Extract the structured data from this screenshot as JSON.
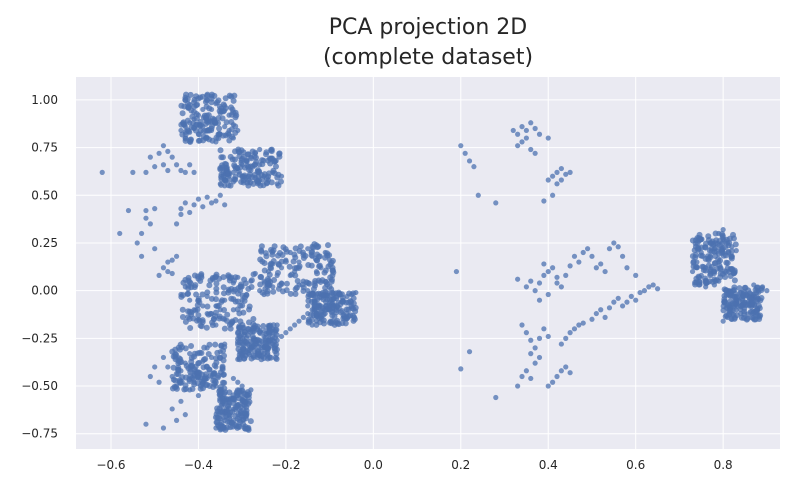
{
  "chart_data": {
    "type": "scatter",
    "title_lines": [
      "PCA projection 2D",
      "(complete dataset)"
    ],
    "xlabel": "",
    "ylabel": "",
    "xlim": [
      -0.68,
      0.93
    ],
    "ylim": [
      -0.83,
      1.12
    ],
    "x_ticks": [
      -0.6,
      -0.4,
      -0.2,
      0.0,
      0.2,
      0.4,
      0.6,
      0.8
    ],
    "x_tick_labels": [
      "−0.6",
      "−0.4",
      "−0.2",
      "0.0",
      "0.2",
      "0.4",
      "0.6",
      "0.8"
    ],
    "y_ticks": [
      1.0,
      0.75,
      0.5,
      0.25,
      0.0,
      -0.25,
      -0.5,
      -0.75
    ],
    "y_tick_labels": [
      "1.00",
      "0.75",
      "0.50",
      "0.25",
      "0.00",
      "−0.25",
      "−0.50",
      "−0.75"
    ],
    "grid": true,
    "legend": "none",
    "colors": {
      "point": "#4c72b0",
      "background": "#eaeaf2",
      "grid": "#ffffff",
      "text": "#262626"
    },
    "points": [
      [
        -0.62,
        0.62
      ],
      [
        -0.58,
        0.3
      ],
      [
        -0.56,
        0.42
      ],
      [
        -0.55,
        0.62
      ],
      [
        -0.54,
        0.25
      ],
      [
        -0.53,
        0.3
      ],
      [
        -0.52,
        0.38
      ],
      [
        -0.52,
        0.42
      ],
      [
        -0.51,
        0.35
      ],
      [
        -0.5,
        0.22
      ],
      [
        -0.5,
        0.43
      ],
      [
        -0.53,
        0.18
      ],
      [
        -0.52,
        0.62
      ],
      [
        -0.51,
        0.7
      ],
      [
        -0.5,
        0.65
      ],
      [
        -0.49,
        0.72
      ],
      [
        -0.48,
        0.66
      ],
      [
        -0.47,
        0.63
      ],
      [
        -0.46,
        0.7
      ],
      [
        -0.45,
        0.66
      ],
      [
        -0.48,
        0.76
      ],
      [
        -0.47,
        0.73
      ],
      [
        -0.44,
        0.63
      ],
      [
        -0.43,
        0.62
      ],
      [
        -0.42,
        0.66
      ],
      [
        -0.41,
        0.62
      ],
      [
        -0.49,
        0.08
      ],
      [
        -0.48,
        0.12
      ],
      [
        -0.47,
        0.15
      ],
      [
        -0.46,
        0.16
      ],
      [
        -0.45,
        0.18
      ],
      [
        -0.47,
        0.1
      ],
      [
        -0.46,
        0.09
      ],
      [
        -0.44,
        0.43
      ],
      [
        -0.43,
        0.46
      ],
      [
        -0.42,
        0.41
      ],
      [
        -0.41,
        0.45
      ],
      [
        -0.4,
        0.48
      ],
      [
        -0.39,
        0.44
      ],
      [
        -0.38,
        0.49
      ],
      [
        -0.37,
        0.46
      ],
      [
        -0.36,
        0.47
      ],
      [
        -0.35,
        0.5
      ],
      [
        -0.34,
        0.45
      ],
      [
        -0.45,
        0.35
      ],
      [
        -0.44,
        0.4
      ],
      [
        -0.44,
        0.84
      ],
      [
        -0.43,
        0.86
      ],
      [
        -0.42,
        0.83
      ],
      [
        -0.42,
        0.88
      ],
      [
        -0.41,
        0.85
      ],
      [
        -0.41,
        0.9
      ],
      [
        -0.4,
        0.82
      ],
      [
        -0.4,
        0.92
      ],
      [
        -0.39,
        0.86
      ],
      [
        -0.39,
        0.95
      ],
      [
        -0.38,
        0.8
      ],
      [
        -0.38,
        0.9
      ],
      [
        -0.38,
        1.0
      ],
      [
        -0.37,
        0.84
      ],
      [
        -0.37,
        0.95
      ],
      [
        -0.37,
        1.02
      ],
      [
        -0.36,
        0.88
      ],
      [
        -0.36,
        0.98
      ],
      [
        -0.35,
        0.82
      ],
      [
        -0.35,
        0.93
      ],
      [
        -0.34,
        0.86
      ],
      [
        -0.34,
        0.97
      ],
      [
        -0.33,
        0.84
      ],
      [
        -0.33,
        0.92
      ],
      [
        -0.32,
        0.87
      ],
      [
        -0.32,
        0.8
      ],
      [
        -0.31,
        0.84
      ],
      [
        -0.43,
        0.8
      ],
      [
        -0.42,
        0.78
      ],
      [
        -0.36,
        0.78
      ],
      [
        -0.35,
        0.56
      ],
      [
        -0.34,
        0.58
      ],
      [
        -0.33,
        0.6
      ],
      [
        -0.32,
        0.62
      ],
      [
        -0.31,
        0.64
      ],
      [
        -0.3,
        0.66
      ],
      [
        -0.29,
        0.68
      ],
      [
        -0.28,
        0.7
      ],
      [
        -0.27,
        0.72
      ],
      [
        -0.26,
        0.74
      ],
      [
        -0.34,
        0.55
      ],
      [
        -0.32,
        0.57
      ],
      [
        -0.3,
        0.6
      ],
      [
        -0.28,
        0.63
      ],
      [
        -0.26,
        0.66
      ],
      [
        -0.25,
        0.6
      ],
      [
        -0.24,
        0.58
      ],
      [
        -0.23,
        0.62
      ],
      [
        -0.22,
        0.56
      ],
      [
        -0.21,
        0.6
      ],
      [
        -0.44,
        -0.02
      ],
      [
        -0.43,
        0.02
      ],
      [
        -0.42,
        -0.05
      ],
      [
        -0.41,
        -0.1
      ],
      [
        -0.4,
        -0.15
      ],
      [
        -0.39,
        -0.08
      ],
      [
        -0.38,
        -0.03
      ],
      [
        -0.37,
        -0.12
      ],
      [
        -0.36,
        -0.18
      ],
      [
        -0.35,
        -0.1
      ],
      [
        -0.34,
        -0.05
      ],
      [
        -0.33,
        0.0
      ],
      [
        -0.32,
        0.04
      ],
      [
        -0.31,
        0.07
      ],
      [
        -0.3,
        0.02
      ],
      [
        -0.29,
        -0.02
      ],
      [
        -0.28,
        0.05
      ],
      [
        -0.27,
        0.09
      ],
      [
        -0.4,
        -0.05
      ],
      [
        -0.38,
        -0.12
      ],
      [
        -0.36,
        -0.08
      ],
      [
        -0.34,
        -0.15
      ],
      [
        -0.32,
        -0.1
      ],
      [
        -0.3,
        -0.05
      ],
      [
        -0.26,
        0.0
      ],
      [
        -0.25,
        0.05
      ],
      [
        -0.24,
        0.1
      ],
      [
        -0.23,
        0.14
      ],
      [
        -0.22,
        0.08
      ],
      [
        -0.21,
        0.12
      ],
      [
        -0.2,
        0.16
      ],
      [
        -0.19,
        0.2
      ],
      [
        -0.18,
        0.1
      ],
      [
        -0.17,
        0.15
      ],
      [
        -0.16,
        0.05
      ],
      [
        -0.15,
        0.22
      ],
      [
        -0.14,
        0.18
      ],
      [
        -0.13,
        0.24
      ],
      [
        -0.12,
        0.12
      ],
      [
        -0.11,
        0.2
      ],
      [
        -0.1,
        0.16
      ],
      [
        -0.19,
        0.08
      ],
      [
        -0.17,
        0.03
      ],
      [
        -0.15,
        0.0
      ],
      [
        -0.13,
        0.1
      ],
      [
        -0.23,
        0.02
      ],
      [
        -0.21,
        0.04
      ],
      [
        -0.25,
        -0.02
      ],
      [
        -0.48,
        -0.35
      ],
      [
        -0.47,
        -0.4
      ],
      [
        -0.46,
        -0.45
      ],
      [
        -0.45,
        -0.5
      ],
      [
        -0.44,
        -0.42
      ],
      [
        -0.43,
        -0.38
      ],
      [
        -0.42,
        -0.33
      ],
      [
        -0.41,
        -0.48
      ],
      [
        -0.4,
        -0.43
      ],
      [
        -0.39,
        -0.37
      ],
      [
        -0.38,
        -0.3
      ],
      [
        -0.37,
        -0.35
      ],
      [
        -0.36,
        -0.4
      ],
      [
        -0.35,
        -0.32
      ],
      [
        -0.34,
        -0.28
      ],
      [
        -0.42,
        -0.52
      ],
      [
        -0.4,
        -0.55
      ],
      [
        -0.44,
        -0.58
      ],
      [
        -0.46,
        -0.62
      ],
      [
        -0.45,
        -0.68
      ],
      [
        -0.43,
        -0.65
      ],
      [
        -0.5,
        -0.4
      ],
      [
        -0.51,
        -0.45
      ],
      [
        -0.52,
        -0.7
      ],
      [
        -0.48,
        -0.72
      ],
      [
        -0.49,
        -0.48
      ],
      [
        -0.38,
        -0.46
      ],
      [
        -0.36,
        -0.5
      ],
      [
        -0.36,
        -0.72
      ],
      [
        -0.35,
        -0.7
      ],
      [
        -0.34,
        -0.68
      ],
      [
        -0.33,
        -0.65
      ],
      [
        -0.32,
        -0.62
      ],
      [
        -0.31,
        -0.6
      ],
      [
        -0.3,
        -0.57
      ],
      [
        -0.29,
        -0.55
      ],
      [
        -0.28,
        -0.52
      ],
      [
        -0.35,
        -0.67
      ],
      [
        -0.33,
        -0.6
      ],
      [
        -0.31,
        -0.55
      ],
      [
        -0.3,
        -0.5
      ],
      [
        -0.31,
        -0.48
      ],
      [
        -0.32,
        -0.46
      ],
      [
        -0.31,
        -0.36
      ],
      [
        -0.3,
        -0.34
      ],
      [
        -0.29,
        -0.32
      ],
      [
        -0.28,
        -0.3
      ],
      [
        -0.27,
        -0.28
      ],
      [
        -0.26,
        -0.26
      ],
      [
        -0.25,
        -0.24
      ],
      [
        -0.24,
        -0.22
      ],
      [
        -0.23,
        -0.2
      ],
      [
        -0.22,
        -0.18
      ],
      [
        -0.24,
        -0.3
      ],
      [
        -0.23,
        -0.28
      ],
      [
        -0.22,
        -0.26
      ],
      [
        -0.21,
        -0.24
      ],
      [
        -0.2,
        -0.22
      ],
      [
        -0.19,
        -0.2
      ],
      [
        -0.18,
        -0.18
      ],
      [
        -0.17,
        -0.16
      ],
      [
        -0.16,
        -0.14
      ],
      [
        -0.15,
        -0.12
      ],
      [
        -0.14,
        -0.18
      ],
      [
        -0.13,
        -0.16
      ],
      [
        -0.12,
        -0.14
      ],
      [
        -0.11,
        -0.12
      ],
      [
        -0.1,
        -0.1
      ],
      [
        -0.09,
        -0.08
      ],
      [
        -0.08,
        -0.06
      ],
      [
        -0.07,
        -0.05
      ],
      [
        -0.06,
        -0.03
      ],
      [
        -0.05,
        -0.02
      ],
      [
        -0.04,
        -0.01
      ],
      [
        -0.13,
        -0.12
      ],
      [
        -0.12,
        -0.08
      ],
      [
        -0.14,
        -0.1
      ],
      [
        -0.15,
        -0.08
      ],
      [
        0.2,
        0.76
      ],
      [
        0.21,
        0.72
      ],
      [
        0.22,
        0.68
      ],
      [
        0.23,
        0.65
      ],
      [
        0.24,
        0.5
      ],
      [
        0.28,
        0.46
      ],
      [
        0.19,
        0.1
      ],
      [
        0.2,
        -0.41
      ],
      [
        0.22,
        -0.32
      ],
      [
        0.28,
        -0.56
      ],
      [
        0.32,
        0.84
      ],
      [
        0.33,
        0.82
      ],
      [
        0.34,
        0.86
      ],
      [
        0.35,
        0.84
      ],
      [
        0.36,
        0.88
      ],
      [
        0.37,
        0.85
      ],
      [
        0.38,
        0.82
      ],
      [
        0.34,
        0.78
      ],
      [
        0.35,
        0.8
      ],
      [
        0.36,
        0.74
      ],
      [
        0.37,
        0.72
      ],
      [
        0.4,
        0.8
      ],
      [
        0.33,
        0.76
      ],
      [
        0.4,
        0.58
      ],
      [
        0.41,
        0.6
      ],
      [
        0.42,
        0.62
      ],
      [
        0.43,
        0.64
      ],
      [
        0.44,
        0.61
      ],
      [
        0.45,
        0.62
      ],
      [
        0.42,
        0.56
      ],
      [
        0.41,
        0.5
      ],
      [
        0.39,
        0.47
      ],
      [
        0.43,
        0.58
      ],
      [
        0.33,
        0.06
      ],
      [
        0.36,
        0.05
      ],
      [
        0.37,
        0.0
      ],
      [
        0.38,
        0.04
      ],
      [
        0.39,
        0.08
      ],
      [
        0.4,
        0.1
      ],
      [
        0.41,
        0.12
      ],
      [
        0.42,
        0.07
      ],
      [
        0.43,
        0.02
      ],
      [
        0.44,
        0.08
      ],
      [
        0.45,
        0.13
      ],
      [
        0.46,
        0.18
      ],
      [
        0.47,
        0.15
      ],
      [
        0.48,
        0.2
      ],
      [
        0.49,
        0.22
      ],
      [
        0.5,
        0.18
      ],
      [
        0.51,
        0.12
      ],
      [
        0.52,
        0.14
      ],
      [
        0.53,
        0.1
      ],
      [
        0.54,
        0.22
      ],
      [
        0.55,
        0.25
      ],
      [
        0.56,
        0.23
      ],
      [
        0.57,
        0.18
      ],
      [
        0.58,
        0.12
      ],
      [
        0.6,
        0.08
      ],
      [
        0.4,
        -0.02
      ],
      [
        0.42,
        0.04
      ],
      [
        0.38,
        -0.05
      ],
      [
        0.35,
        0.02
      ],
      [
        0.39,
        0.14
      ],
      [
        0.34,
        -0.18
      ],
      [
        0.35,
        -0.22
      ],
      [
        0.36,
        -0.26
      ],
      [
        0.37,
        -0.3
      ],
      [
        0.38,
        -0.25
      ],
      [
        0.39,
        -0.2
      ],
      [
        0.4,
        -0.24
      ],
      [
        0.36,
        -0.33
      ],
      [
        0.37,
        -0.38
      ],
      [
        0.34,
        -0.45
      ],
      [
        0.35,
        -0.42
      ],
      [
        0.33,
        -0.5
      ],
      [
        0.36,
        -0.46
      ],
      [
        0.38,
        -0.35
      ],
      [
        0.44,
        -0.25
      ],
      [
        0.45,
        -0.22
      ],
      [
        0.46,
        -0.2
      ],
      [
        0.47,
        -0.18
      ],
      [
        0.48,
        -0.17
      ],
      [
        0.5,
        -0.15
      ],
      [
        0.51,
        -0.12
      ],
      [
        0.52,
        -0.1
      ],
      [
        0.53,
        -0.14
      ],
      [
        0.54,
        -0.09
      ],
      [
        0.55,
        -0.06
      ],
      [
        0.56,
        -0.04
      ],
      [
        0.57,
        -0.08
      ],
      [
        0.58,
        -0.06
      ],
      [
        0.59,
        -0.03
      ],
      [
        0.6,
        -0.05
      ],
      [
        0.61,
        -0.01
      ],
      [
        0.62,
        0.0
      ],
      [
        0.63,
        0.02
      ],
      [
        0.64,
        0.03
      ],
      [
        0.65,
        0.01
      ],
      [
        0.43,
        -0.28
      ],
      [
        0.42,
        -0.45
      ],
      [
        0.43,
        -0.42
      ],
      [
        0.44,
        -0.4
      ],
      [
        0.45,
        -0.43
      ],
      [
        0.41,
        -0.48
      ],
      [
        0.4,
        -0.5
      ],
      [
        0.73,
        0.1
      ],
      [
        0.74,
        0.15
      ],
      [
        0.75,
        0.08
      ],
      [
        0.75,
        0.2
      ],
      [
        0.76,
        0.12
      ],
      [
        0.76,
        0.05
      ],
      [
        0.77,
        0.18
      ],
      [
        0.77,
        0.25
      ],
      [
        0.78,
        0.1
      ],
      [
        0.78,
        0.22
      ],
      [
        0.79,
        0.3
      ],
      [
        0.79,
        0.15
      ],
      [
        0.8,
        0.2
      ],
      [
        0.8,
        0.27
      ],
      [
        0.81,
        0.12
      ],
      [
        0.81,
        0.25
      ],
      [
        0.82,
        0.18
      ],
      [
        0.82,
        0.23
      ],
      [
        0.83,
        0.21
      ],
      [
        0.74,
        0.12
      ],
      [
        0.76,
        0.02
      ],
      [
        0.78,
        0.03
      ],
      [
        0.8,
        0.32
      ],
      [
        0.79,
        0.05
      ],
      [
        0.8,
        -0.16
      ],
      [
        0.81,
        -0.14
      ],
      [
        0.82,
        -0.12
      ],
      [
        0.83,
        -0.1
      ],
      [
        0.84,
        -0.08
      ],
      [
        0.85,
        -0.06
      ],
      [
        0.86,
        -0.04
      ],
      [
        0.87,
        -0.02
      ],
      [
        0.88,
        0.0
      ],
      [
        0.89,
        0.02
      ],
      [
        0.82,
        -0.15
      ],
      [
        0.84,
        -0.12
      ],
      [
        0.86,
        -0.08
      ],
      [
        0.88,
        -0.04
      ],
      [
        0.87,
        0.03
      ],
      [
        0.9,
        0.0
      ]
    ],
    "dense_clusters": [
      {
        "name": "cluster-a",
        "x": [
          -0.44,
          -0.31
        ],
        "y": [
          0.78,
          1.03
        ]
      },
      {
        "name": "cluster-b",
        "x": [
          -0.35,
          -0.21
        ],
        "y": [
          0.55,
          0.74
        ]
      },
      {
        "name": "cluster-c",
        "x": [
          -0.44,
          -0.27
        ],
        "y": [
          -0.2,
          0.09
        ]
      },
      {
        "name": "cluster-d",
        "x": [
          -0.26,
          -0.09
        ],
        "y": [
          -0.02,
          0.25
        ]
      },
      {
        "name": "cluster-e",
        "x": [
          -0.46,
          -0.34
        ],
        "y": [
          -0.52,
          -0.28
        ]
      },
      {
        "name": "cluster-f",
        "x": [
          -0.36,
          -0.28
        ],
        "y": [
          -0.73,
          -0.52
        ]
      },
      {
        "name": "cluster-g",
        "x": [
          -0.31,
          -0.22
        ],
        "y": [
          -0.36,
          -0.18
        ]
      },
      {
        "name": "cluster-h",
        "x": [
          -0.15,
          -0.04
        ],
        "y": [
          -0.18,
          -0.01
        ]
      },
      {
        "name": "cluster-i",
        "x": [
          0.73,
          0.83
        ],
        "y": [
          0.03,
          0.3
        ]
      },
      {
        "name": "cluster-j",
        "x": [
          0.8,
          0.89
        ],
        "y": [
          -0.16,
          0.02
        ]
      }
    ]
  }
}
